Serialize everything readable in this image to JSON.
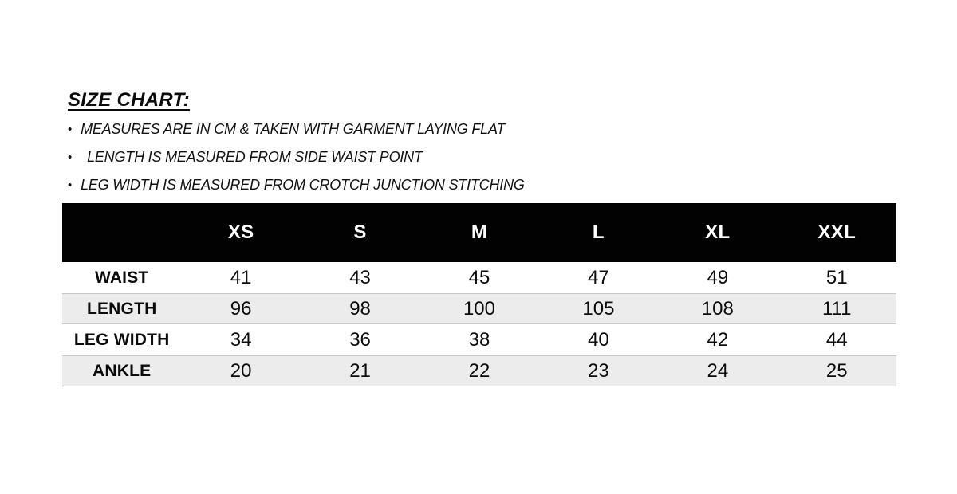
{
  "title": "SIZE CHART:",
  "bullets": {
    "marker": "•",
    "items": [
      "MEASURES ARE IN CM & TAKEN WITH GARMENT LAYING FLAT",
      "LENGTH IS MEASURED FROM SIDE WAIST POINT",
      "LEG WIDTH IS MEASURED FROM CROTCH JUNCTION STITCHING"
    ]
  },
  "chart_data": {
    "type": "table",
    "title": "SIZE CHART",
    "unit": "cm",
    "columns": [
      "",
      "XS",
      "S",
      "M",
      "L",
      "XL",
      "XXL"
    ],
    "rows": [
      {
        "label": "WAIST",
        "values": [
          "41",
          "43",
          "45",
          "47",
          "49",
          "51"
        ]
      },
      {
        "label": "LENGTH",
        "values": [
          "96",
          "98",
          "100",
          "105",
          "108",
          "111"
        ]
      },
      {
        "label": "LEG WIDTH",
        "values": [
          "34",
          "36",
          "38",
          "40",
          "42",
          "44"
        ]
      },
      {
        "label": "ANKLE",
        "values": [
          "20",
          "21",
          "22",
          "23",
          "24",
          "25"
        ]
      }
    ]
  },
  "colors": {
    "header_bg": "#020202",
    "header_text": "#ffffff",
    "row_alt_bg": "#ececec",
    "row_border": "#c9c9c9",
    "text": "#0d0d0d"
  }
}
